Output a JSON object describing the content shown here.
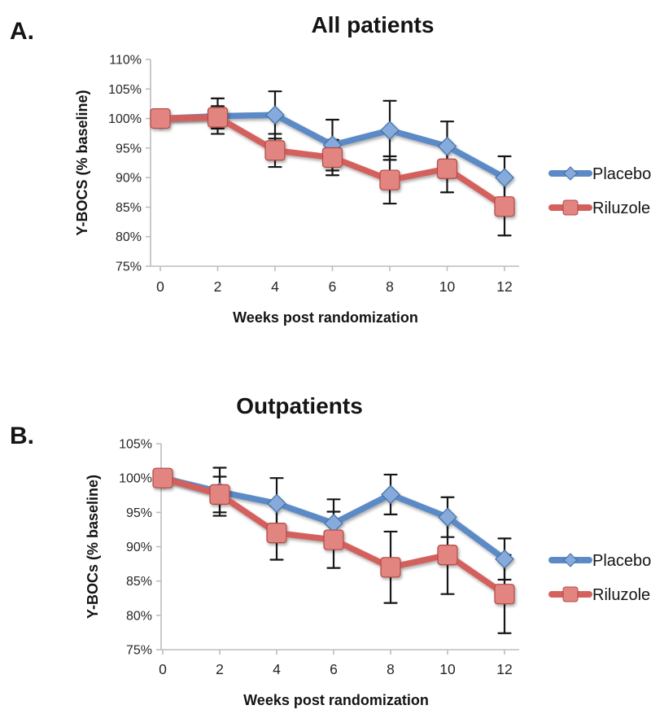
{
  "figure": {
    "background": "#ffffff"
  },
  "colors": {
    "placebo_line": "#5b8ac6",
    "placebo_fill": "#85aadb",
    "placebo_edge": "#416fa6",
    "riluzole_line": "#d4615d",
    "riluzole_fill": "#e28580",
    "riluzole_edge": "#b14844",
    "error_bar": "#161616",
    "axis_line": "#bdbdbd",
    "tick_text": "#262626",
    "title_text": "#141414"
  },
  "chart_data": [
    {
      "type": "line",
      "panel_label": "A.",
      "title": "All patients",
      "xlabel": "Weeks post randomization",
      "ylabel": "Y-BOCS (% baseline)",
      "x": [
        0,
        2,
        4,
        6,
        8,
        10,
        12
      ],
      "xtick_labels": [
        "0",
        "2",
        "4",
        "6",
        "8",
        "10",
        "12"
      ],
      "ylim": [
        75,
        110
      ],
      "ytick_values": [
        75,
        80,
        85,
        90,
        95,
        100,
        105,
        110
      ],
      "ytick_labels": [
        "75%",
        "80%",
        "85%",
        "90%",
        "95%",
        "100%",
        "105%",
        "110%"
      ],
      "grid": false,
      "legend_position": "right",
      "series": [
        {
          "name": "Placebo",
          "marker": "diamond",
          "values": [
            100,
            100.4,
            100.6,
            95.5,
            98,
            95.3,
            90
          ],
          "error": [
            0,
            3,
            4,
            4.3,
            5,
            4.2,
            3.6
          ]
        },
        {
          "name": "Riluzole",
          "marker": "square",
          "values": [
            100,
            100.2,
            94.6,
            93.4,
            89.6,
            91.5,
            85.1
          ],
          "error": [
            0,
            1.9,
            2.8,
            3,
            4,
            4,
            4.9
          ]
        }
      ]
    },
    {
      "type": "line",
      "panel_label": "B.",
      "title": "Outpatients",
      "xlabel": "Weeks post randomization",
      "ylabel": "Y-BOCs (% baseline)",
      "x": [
        0,
        2,
        4,
        6,
        8,
        10,
        12
      ],
      "xtick_labels": [
        "0",
        "2",
        "4",
        "6",
        "8",
        "10",
        "12"
      ],
      "ylim": [
        75,
        105
      ],
      "ytick_values": [
        75,
        80,
        85,
        90,
        95,
        100,
        105
      ],
      "ytick_labels": [
        "75%",
        "80%",
        "85%",
        "90%",
        "95%",
        "100%",
        "105%"
      ],
      "grid": false,
      "legend_position": "right",
      "series": [
        {
          "name": "Placebo",
          "marker": "diamond",
          "values": [
            100,
            98,
            96.3,
            93.4,
            97.6,
            94.3,
            88.2
          ],
          "error": [
            0,
            3.5,
            3.7,
            3.5,
            2.9,
            2.9,
            3
          ]
        },
        {
          "name": "Riluzole",
          "marker": "square",
          "values": [
            100,
            97.6,
            92,
            91,
            87,
            88.8,
            83.1
          ],
          "error": [
            0,
            2.6,
            3.9,
            4.1,
            5.2,
            5.7,
            5.7
          ]
        }
      ]
    }
  ]
}
